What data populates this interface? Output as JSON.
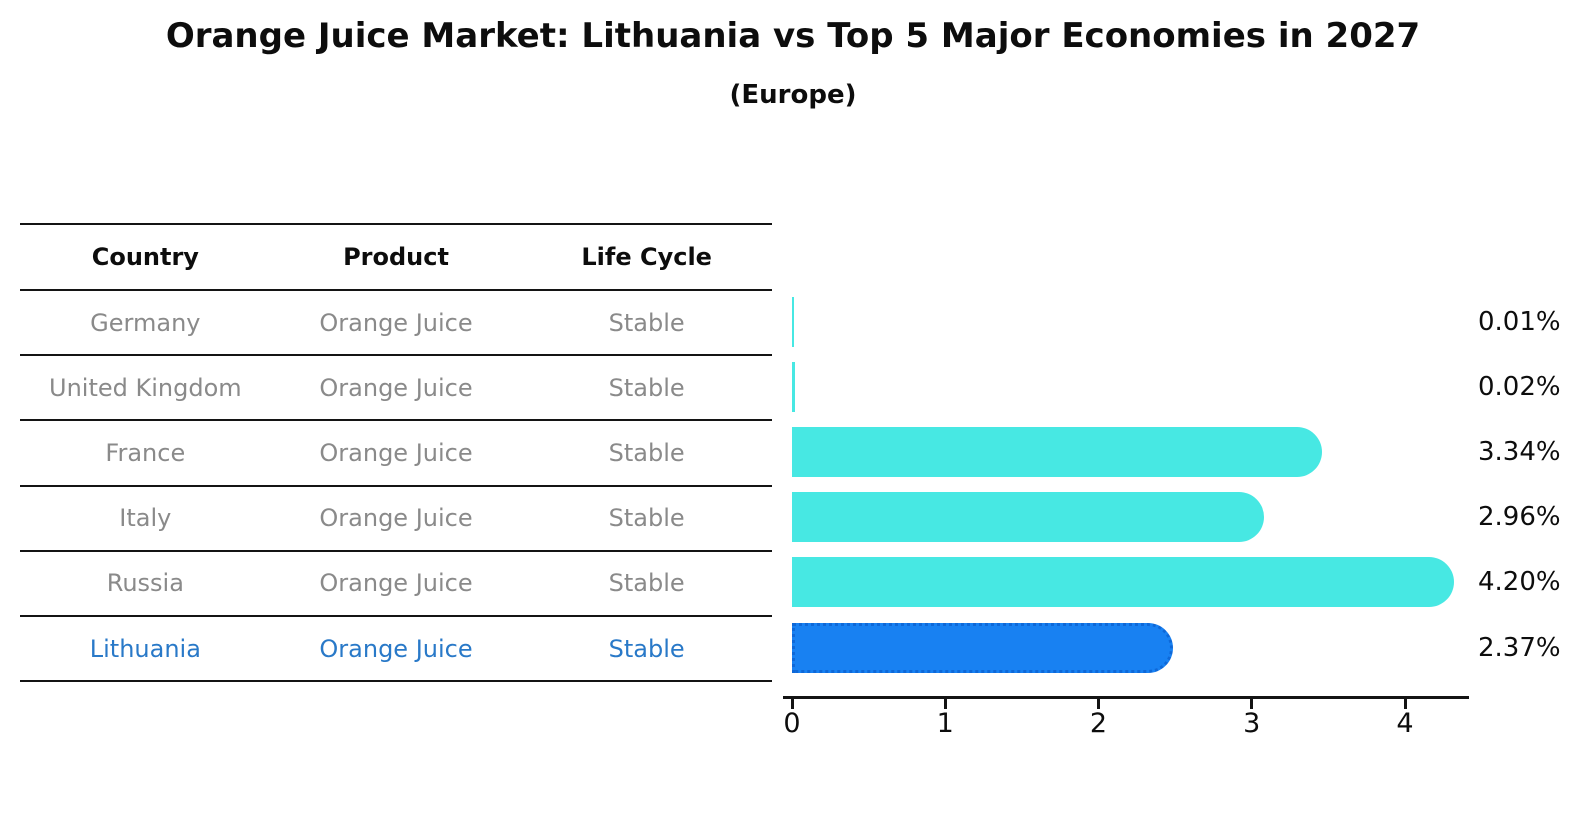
{
  "header": {
    "title": "Orange Juice Market: Lithuania vs Top 5 Major Economies in 2027",
    "subtitle": "(Europe)"
  },
  "table": {
    "columns": [
      "Country",
      "Product",
      "Life Cycle"
    ],
    "rows": [
      {
        "country": "Germany",
        "product": "Orange Juice",
        "life_cycle": "Stable",
        "highlighted": false
      },
      {
        "country": "United Kingdom",
        "product": "Orange Juice",
        "life_cycle": "Stable",
        "highlighted": false
      },
      {
        "country": "France",
        "product": "Orange Juice",
        "life_cycle": "Stable",
        "highlighted": false
      },
      {
        "country": "Italy",
        "product": "Orange Juice",
        "life_cycle": "Stable",
        "highlighted": false
      },
      {
        "country": "Russia",
        "product": "Orange Juice",
        "life_cycle": "Stable",
        "highlighted": false
      },
      {
        "country": "Lithuania",
        "product": "Orange Juice",
        "life_cycle": "Stable",
        "highlighted": true
      }
    ]
  },
  "chart_data": {
    "type": "bar",
    "orientation": "horizontal",
    "title": "Orange Juice Market: Lithuania vs Top 5 Major Economies in 2027",
    "subtitle": "(Europe)",
    "categories": [
      "Germany",
      "United Kingdom",
      "France",
      "Italy",
      "Russia",
      "Lithuania"
    ],
    "values": [
      0.01,
      0.02,
      3.34,
      2.96,
      4.2,
      2.37
    ],
    "value_labels": [
      "0.01%",
      "0.02%",
      "3.34%",
      "2.96%",
      "4.20%",
      "2.37%"
    ],
    "xticks": [
      "0",
      "1",
      "2",
      "3",
      "4"
    ],
    "xlim": [
      0,
      4.41
    ],
    "grid": false,
    "legend": "none",
    "bar_color": "#47e8e3",
    "highlight_bar_color": "#1881f2",
    "highlight_border_color": "#0e68d8",
    "highlight_index": 5
  },
  "colors": {
    "title_text": "#0d0d0d",
    "table_text_muted": "#8a8a8a",
    "highlight_text": "#2979c8",
    "rule_lines": "#141414",
    "background": "#ffffff"
  }
}
